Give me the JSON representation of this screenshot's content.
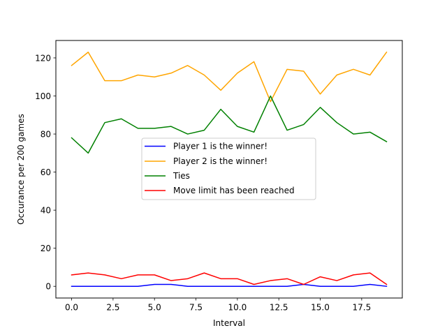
{
  "chart_data": {
    "type": "line",
    "title": "",
    "xlabel": "Interval",
    "ylabel": "Occurance per 200 games",
    "xlim": [
      -0.95,
      19.95
    ],
    "ylim": [
      -6.15,
      129.15
    ],
    "xticks": [
      0.0,
      2.5,
      5.0,
      7.5,
      10.0,
      12.5,
      15.0,
      17.5
    ],
    "xtick_labels": [
      "0.0",
      "2.5",
      "5.0",
      "7.5",
      "10.0",
      "12.5",
      "15.0",
      "17.5"
    ],
    "yticks": [
      0,
      20,
      40,
      60,
      80,
      100,
      120
    ],
    "ytick_labels": [
      "0",
      "20",
      "40",
      "60",
      "80",
      "100",
      "120"
    ],
    "grid": false,
    "legend_position": "center",
    "x": [
      0,
      1,
      2,
      3,
      4,
      5,
      6,
      7,
      8,
      9,
      10,
      11,
      12,
      13,
      14,
      15,
      16,
      17,
      18,
      19
    ],
    "series": [
      {
        "name": "Player 1 is the winner!",
        "color": "#0000ff",
        "values": [
          0,
          0,
          0,
          0,
          0,
          1,
          1,
          0,
          0,
          0,
          0,
          0,
          0,
          0,
          1,
          0,
          0,
          0,
          1,
          0
        ]
      },
      {
        "name": "Player 2 is the winner!",
        "color": "#ffa500",
        "values": [
          116,
          123,
          108,
          108,
          111,
          110,
          112,
          116,
          111,
          103,
          112,
          118,
          97,
          114,
          113,
          101,
          111,
          114,
          111,
          123
        ]
      },
      {
        "name": "Ties",
        "color": "#008000",
        "values": [
          78,
          70,
          86,
          88,
          83,
          83,
          84,
          80,
          82,
          93,
          84,
          81,
          100,
          82,
          85,
          94,
          86,
          80,
          81,
          76
        ]
      },
      {
        "name": "Move limit has been reached",
        "color": "#ff0000",
        "values": [
          6,
          7,
          6,
          4,
          6,
          6,
          3,
          4,
          7,
          4,
          4,
          1,
          3,
          4,
          1,
          5,
          3,
          6,
          7,
          1
        ]
      }
    ]
  }
}
